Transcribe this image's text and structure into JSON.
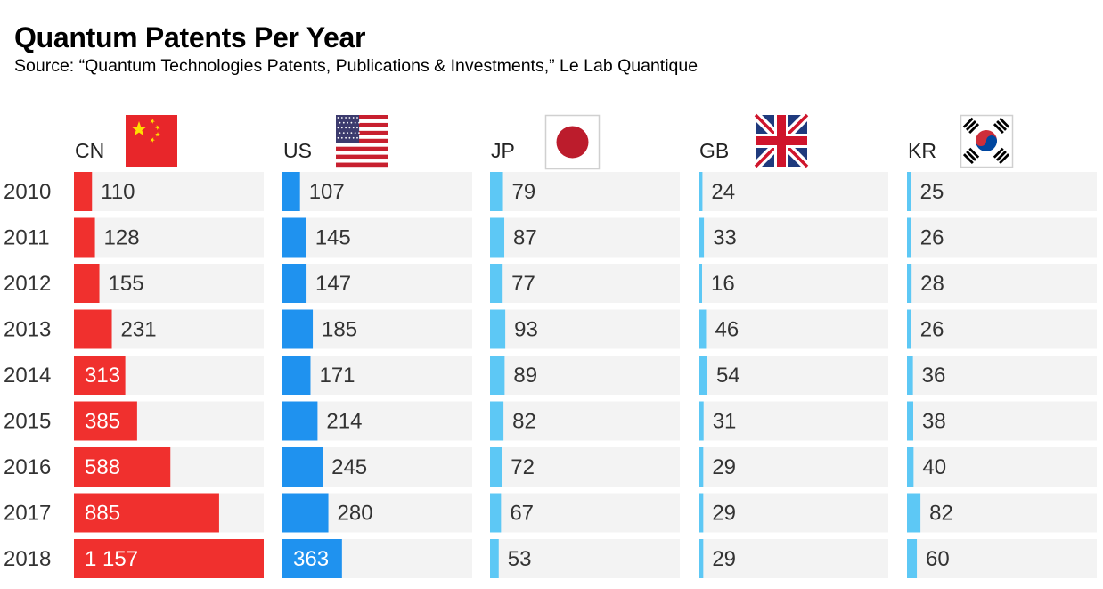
{
  "title": "Quantum Patents Per Year",
  "subtitle": "Source: “Quantum Technologies Patents, Publications & Investments,” Le Lab Quantique",
  "chart_data": {
    "type": "bar",
    "orientation": "horizontal",
    "layout": "small-multiples",
    "title": "Quantum Patents Per Year",
    "categories": [
      "2010",
      "2011",
      "2012",
      "2013",
      "2014",
      "2015",
      "2016",
      "2017",
      "2018"
    ],
    "scale_max": 1157,
    "series": [
      {
        "name": "CN",
        "flag": "china-flag",
        "color": "#f0302e",
        "values": [
          110,
          128,
          155,
          231,
          313,
          385,
          588,
          885,
          1157
        ],
        "labels": [
          "110",
          "128",
          "155",
          "231",
          "313",
          "385",
          "588",
          "885",
          "1 157"
        ]
      },
      {
        "name": "US",
        "flag": "usa-flag",
        "color": "#1f92ef",
        "values": [
          107,
          145,
          147,
          185,
          171,
          214,
          245,
          280,
          363
        ],
        "labels": [
          "107",
          "145",
          "147",
          "185",
          "171",
          "214",
          "245",
          "280",
          "363"
        ]
      },
      {
        "name": "JP",
        "flag": "japan-flag",
        "color": "#5dc8f5",
        "values": [
          79,
          87,
          77,
          93,
          89,
          82,
          72,
          67,
          53
        ],
        "labels": [
          "79",
          "87",
          "77",
          "93",
          "89",
          "82",
          "72",
          "67",
          "53"
        ]
      },
      {
        "name": "GB",
        "flag": "uk-flag",
        "color": "#5dc8f5",
        "values": [
          24,
          33,
          16,
          46,
          54,
          31,
          29,
          29,
          29
        ],
        "labels": [
          "24",
          "33",
          "16",
          "46",
          "54",
          "31",
          "29",
          "29",
          "29"
        ]
      },
      {
        "name": "KR",
        "flag": "south-korea-flag",
        "color": "#5dc8f5",
        "values": [
          25,
          26,
          28,
          26,
          36,
          38,
          40,
          82,
          60
        ],
        "labels": [
          "25",
          "26",
          "28",
          "26",
          "36",
          "38",
          "40",
          "82",
          "60"
        ]
      }
    ],
    "colors": {
      "track": "#f3f3f3",
      "value_text": "#333333",
      "value_text_inside": "#ffffff"
    }
  }
}
